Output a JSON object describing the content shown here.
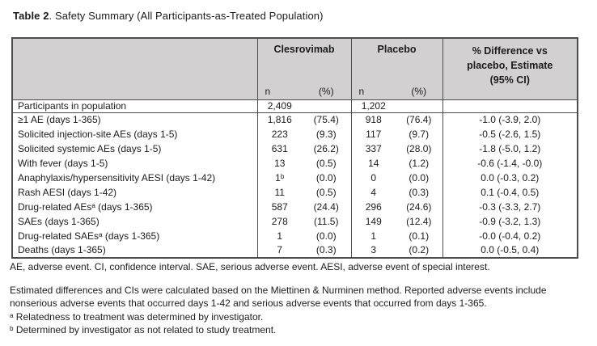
{
  "page": {
    "title_label": "Table 2",
    "title_text": ". Safety Summary (All Participants-as-Treated Population)"
  },
  "table": {
    "header": {
      "clesrovimab": "Clesrovimab",
      "placebo": "Placebo",
      "difference": "% Difference vs placebo, Estimate (95% CI)",
      "n": "n",
      "pct": "(%)"
    },
    "rows": [
      {
        "label": "Participants in population",
        "clesrovimab_n": "2,409",
        "clesrovimab_pct": "",
        "placebo_n": "1,202",
        "placebo_pct": "",
        "difference": ""
      },
      {
        "label": "≥1 AE (days 1-365)",
        "clesrovimab_n": "1,816",
        "clesrovimab_pct": "(75.4)",
        "placebo_n": "918",
        "placebo_pct": "(76.4)",
        "difference": "-1.0 (-3.9, 2.0)"
      },
      {
        "label": "Solicited injection-site AEs (days 1-5)",
        "clesrovimab_n": "223",
        "clesrovimab_pct": "(9.3)",
        "placebo_n": "117",
        "placebo_pct": "(9.7)",
        "difference": "-0.5 (-2.6, 1.5)"
      },
      {
        "label": "Solicited systemic AEs (days 1-5)",
        "clesrovimab_n": "631",
        "clesrovimab_pct": "(26.2)",
        "placebo_n": "337",
        "placebo_pct": "(28.0)",
        "difference": "-1.8 (-5.0, 1.2)"
      },
      {
        "label": "With fever (days 1-5)",
        "clesrovimab_n": "13",
        "clesrovimab_pct": "(0.5)",
        "placebo_n": "14",
        "placebo_pct": "(1.2)",
        "difference": "-0.6 (-1.4, -0.0)"
      },
      {
        "label": "Anaphylaxis/hypersensitivity AESI (days 1-42)",
        "clesrovimab_n": "1ᵇ",
        "clesrovimab_pct": "(0.0)",
        "placebo_n": "0",
        "placebo_pct": "(0.0)",
        "difference": "0.0 (-0.3, 0.2)"
      },
      {
        "label": "Rash AESI (days 1-42)",
        "clesrovimab_n": "11",
        "clesrovimab_pct": "(0.5)",
        "placebo_n": "4",
        "placebo_pct": "(0.3)",
        "difference": "0.1 (-0.4, 0.5)"
      },
      {
        "label": "Drug-related AEsᵃ (days 1-365)",
        "clesrovimab_n": "587",
        "clesrovimab_pct": "(24.4)",
        "placebo_n": "296",
        "placebo_pct": "(24.6)",
        "difference": "-0.3 (-3.3, 2.7)"
      },
      {
        "label": "SAEs (days 1-365)",
        "clesrovimab_n": "278",
        "clesrovimab_pct": "(11.5)",
        "placebo_n": "149",
        "placebo_pct": "(12.4)",
        "difference": "-0.9 (-3.2, 1.3)"
      },
      {
        "label": "Drug-related SAEsᵃ (days 1-365)",
        "clesrovimab_n": "1",
        "clesrovimab_pct": "(0.0)",
        "placebo_n": "1",
        "placebo_pct": "(0.1)",
        "difference": "-0.0 (-0.4, 0.2)"
      },
      {
        "label": "Deaths (days 1-365)",
        "clesrovimab_n": "7",
        "clesrovimab_pct": "(0.3)",
        "placebo_n": "3",
        "placebo_pct": "(0.2)",
        "difference": "0.0 (-0.5, 0.4)"
      }
    ]
  },
  "footnotes": {
    "abbreviations": "AE, adverse event. CI, confidence interval. SAE, serious adverse event. AESI, adverse event of special interest.",
    "methods_line1": "Estimated differences and CIs were calculated based on the Miettinen & Nurminen method. Reported adverse events include",
    "methods_line2": "nonserious adverse events that occurred days 1-42 and serious adverse events that occurred from days 1-365.",
    "note_a": "ᵃ Relatedness to treatment was determined by investigator.",
    "note_b": "ᵇ Determined by investigator as not related to study treatment."
  },
  "colors": {
    "header_bg": "#d2d0d0",
    "border": "#4d4d4d",
    "text": "#1c1c1c"
  }
}
